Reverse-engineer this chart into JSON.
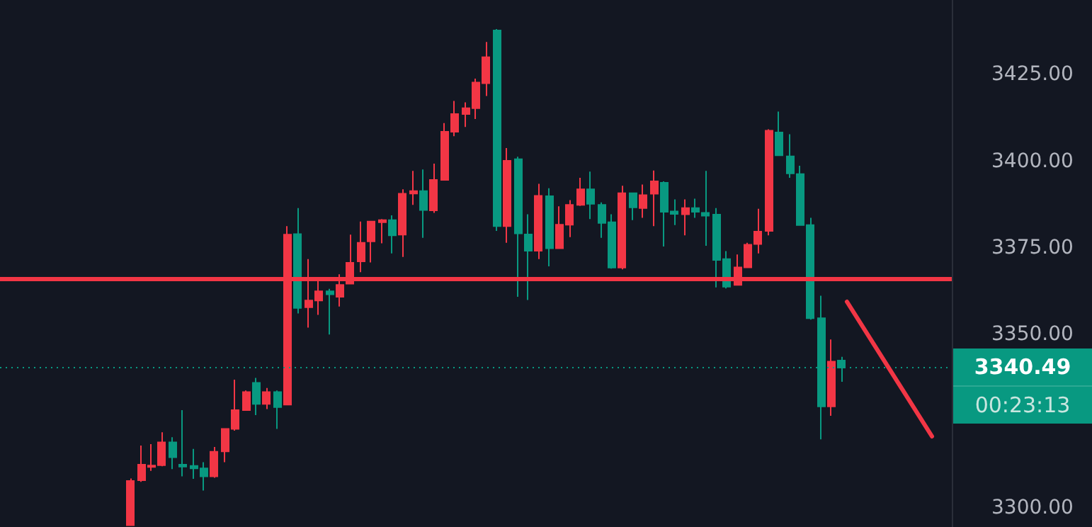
{
  "chart_data": {
    "type": "candlestick",
    "categories": [
      null,
      null,
      null,
      null,
      null,
      null,
      null,
      null,
      null,
      null,
      null,
      null,
      null,
      null,
      null,
      null,
      null,
      null,
      null,
      null,
      null,
      null,
      null,
      null,
      null,
      null,
      null,
      null,
      null,
      null,
      null,
      null,
      null,
      null,
      null,
      null,
      null,
      null,
      null,
      null,
      null,
      null,
      null,
      null,
      null,
      null,
      null,
      null,
      null,
      null,
      null,
      null,
      null,
      null,
      null,
      null,
      null,
      null,
      null,
      null,
      null,
      null,
      null,
      null,
      null,
      null,
      null,
      null,
      null,
      null,
      null,
      null,
      null,
      null,
      null,
      null,
      null,
      null,
      null,
      null,
      null,
      null,
      null,
      null,
      null,
      null,
      null,
      null,
      null,
      null,
      null
    ],
    "ohlc": [
      null,
      null,
      null,
      null,
      null,
      null,
      null,
      null,
      null,
      null,
      null,
      null,
      [
        3295,
        3308.5,
        3295,
        3307.8
      ],
      [
        3308,
        3318,
        3307.5,
        3312.5
      ],
      [
        3311.8,
        3318.4,
        3310.7,
        3312.2
      ],
      [
        3312.3,
        3321.8,
        3312,
        3318.9
      ],
      [
        3318.9,
        3320.4,
        3311.2,
        3314.6
      ],
      [
        3312.5,
        3328.2,
        3309.1,
        3311.9
      ],
      [
        3312.1,
        3317,
        3308.4,
        3311.4
      ],
      [
        3311.4,
        3313.2,
        3305,
        3309.1
      ],
      [
        3309.1,
        3317.6,
        3308.7,
        3316.2
      ],
      [
        3316.3,
        3323,
        3313.2,
        3322.8
      ],
      [
        3322.8,
        3337,
        3322.3,
        3328.2
      ],
      [
        3328.2,
        3333.9,
        3328.2,
        3333.4
      ],
      [
        3336.1,
        3337.5,
        3326.8,
        3330
      ],
      [
        3330,
        3334.6,
        3328.5,
        3333.4
      ],
      [
        3333.4,
        3333.9,
        3322.8,
        3329.1
      ],
      [
        3329.8,
        3381.3,
        3329.8,
        3378.8
      ],
      [
        3379,
        3386.5,
        3356.1,
        3357.7
      ],
      [
        3357.9,
        3371.8,
        3352,
        3359.8
      ],
      [
        3359.8,
        3365.6,
        3355.7,
        3362.5
      ],
      [
        3362.5,
        3363.2,
        3350,
        3361.6
      ],
      [
        3360.9,
        3367.4,
        3358.1,
        3364.3
      ],
      [
        3364.7,
        3378.8,
        3364.7,
        3370.7
      ],
      [
        3371.1,
        3382.6,
        3368,
        3376.5
      ],
      [
        3376.9,
        3382.6,
        3370.8,
        3382.6
      ],
      [
        3382.4,
        3383.3,
        3376.3,
        3383
      ],
      [
        3383,
        3384.4,
        3373.4,
        3378.6
      ],
      [
        3378.8,
        3391.9,
        3372.4,
        3390.6
      ],
      [
        3390.7,
        3397.2,
        3387.4,
        3391.4
      ],
      [
        3391.4,
        3397.6,
        3377.9,
        3385.9
      ],
      [
        3385.8,
        3399.3,
        3385.1,
        3394.6
      ],
      [
        3394.6,
        3411,
        3394.6,
        3408.5
      ],
      [
        3408.5,
        3417.4,
        3407.2,
        3413.6
      ],
      [
        3413.6,
        3417,
        3409.9,
        3415.3
      ],
      [
        3415.3,
        3423.8,
        3412.2,
        3422.7
      ],
      [
        3422.5,
        3434.4,
        3418.8,
        3430
      ],
      [
        3437.7,
        3438.1,
        3379.9,
        3381.3
      ],
      [
        3381.3,
        3403.8,
        3376.5,
        3400.1
      ],
      [
        3400.6,
        3401.3,
        3360.9,
        3379.2
      ],
      [
        3378.9,
        3384.7,
        3360,
        3374.2
      ],
      [
        3374.2,
        3393.5,
        3371.8,
        3390
      ],
      [
        3389.9,
        3392.2,
        3369.7,
        3374.9
      ],
      [
        3374.9,
        3387,
        3374.8,
        3381.7
      ],
      [
        3381.7,
        3388.8,
        3378.1,
        3387.4
      ],
      [
        3387.4,
        3395.2,
        3387.1,
        3391.9
      ],
      [
        3391.9,
        3397,
        3383.3,
        3387.7
      ],
      [
        3387.4,
        3388.1,
        3377.9,
        3382.2
      ],
      [
        3382.4,
        3384.7,
        3369,
        3369.3
      ],
      [
        3369.3,
        3392.9,
        3368.8,
        3390.8
      ],
      [
        3390.8,
        3390.8,
        3383,
        3386.7
      ],
      [
        3386.5,
        3393.3,
        3383.7,
        3390.2
      ],
      [
        3390.6,
        3397.3,
        3381.3,
        3394.2
      ],
      [
        3393.8,
        3394.2,
        3375.4,
        3385.4
      ],
      [
        3385.5,
        3389,
        3381.6,
        3384.8
      ],
      [
        3384.7,
        3389,
        3378.6,
        3386.5
      ],
      [
        3386.5,
        3389.2,
        3383.7,
        3385.4
      ],
      [
        3385.1,
        3397.2,
        3375.6,
        3384.3
      ],
      [
        3384.6,
        3386.5,
        3363.6,
        3371.5
      ],
      [
        3371.8,
        3374.1,
        3363.3,
        3363.8
      ],
      [
        3364.3,
        3373.1,
        3364.3,
        3369.4
      ],
      [
        3369.4,
        3376.5,
        3369.4,
        3375.9
      ],
      [
        3376.1,
        3386.3,
        3373.4,
        3379.7
      ],
      [
        3379.9,
        3409.2,
        3378.6,
        3408.8
      ],
      [
        3408.3,
        3414.3,
        3401.7,
        3401.7
      ],
      [
        3401.4,
        3407.8,
        3395.2,
        3396.5
      ],
      [
        3396.3,
        3398.7,
        3381.6,
        3381.6
      ],
      [
        3381.6,
        3383.7,
        3354.3,
        3354.7
      ],
      [
        3354.7,
        3361.2,
        3319.8,
        3329.3
      ],
      [
        3329.3,
        3348.6,
        3326.6,
        3342.2
      ],
      [
        3342.5,
        3343.6,
        3336.4,
        3340.49
      ],
      null,
      null,
      null,
      null,
      null,
      null,
      null,
      null,
      null,
      null
    ],
    "colors": [
      null,
      null,
      null,
      null,
      null,
      null,
      null,
      null,
      null,
      null,
      null,
      null,
      "#f23645",
      "#f23645",
      "#f23645",
      "#f23645",
      "#089981",
      "#089981",
      "#089981",
      "#089981",
      "#f23645",
      "#f23645",
      "#f23645",
      "#f23645",
      "#089981",
      "#f23645",
      "#089981",
      "#f23645",
      "#089981",
      "#f23645",
      "#f23645",
      "#089981",
      "#f23645",
      "#f23645",
      "#f23645",
      "#f23645",
      "#f23645",
      "#089981",
      "#f23645",
      "#f23645",
      "#089981",
      "#f23645",
      "#f23645",
      "#f23645",
      "#f23645",
      "#f23645",
      "#f23645",
      "#089981",
      "#f23645",
      "#089981",
      "#089981",
      "#f23645",
      "#089981",
      "#f23645",
      "#f23645",
      "#f23645",
      "#089981",
      "#089981",
      "#089981",
      "#f23645",
      "#089981",
      "#f23645",
      "#f23645",
      "#089981",
      "#089981",
      "#f23645",
      "#089981",
      "#089981",
      "#089981",
      "#089981",
      "#f23645",
      "#f23645",
      "#f23645",
      "#f23645",
      "#089981",
      "#089981",
      "#089981",
      "#089981",
      "#089981",
      "#f23645",
      "#089981",
      null,
      null,
      null,
      null,
      null,
      null,
      null,
      null,
      null,
      null
    ],
    "ylim": [
      3294.5,
      3446.5
    ],
    "yticks": [
      {
        "value": 3300,
        "label": "3300.00"
      },
      {
        "value": 3350,
        "label": "3350.00"
      },
      {
        "value": 3375,
        "label": "3375.00"
      },
      {
        "value": 3400,
        "label": "3400.00"
      },
      {
        "value": 3425,
        "label": "3425.00"
      }
    ],
    "tick_labels": "y",
    "grid": false,
    "ref_lines": [
      {
        "axis": "y",
        "value": 3366,
        "color": "#f23645",
        "line_style": "solid"
      },
      {
        "axis": "y",
        "value": 3340.49,
        "label": "3340.49",
        "color": "#089981",
        "line_style": "dotted"
      }
    ],
    "annotations": [
      "00:23:13"
    ]
  }
}
